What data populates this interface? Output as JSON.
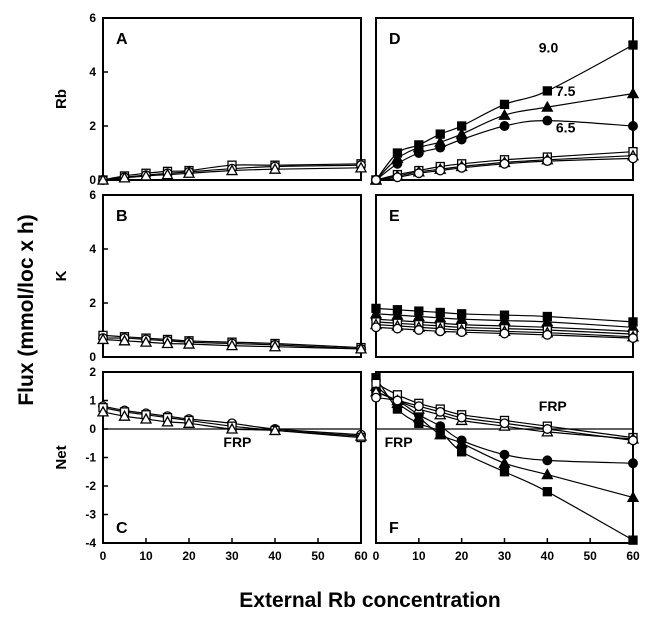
{
  "figure": {
    "xlabel": "External Rb concentration",
    "ylabel": "Flux (mmol/loc x h)",
    "row_labels": [
      "Rb",
      "K",
      "Net"
    ]
  },
  "chart_data": [
    {
      "panel": "A",
      "type": "line",
      "row_label": "Rb",
      "xlim": [
        0,
        60
      ],
      "ylim": [
        0,
        6
      ],
      "xticks": [],
      "yticks": [
        0,
        2,
        4,
        6
      ],
      "annotations": [],
      "series": [
        {
          "marker": "open-square",
          "x": [
            0,
            5,
            10,
            15,
            20,
            30,
            40,
            60
          ],
          "y": [
            0,
            0.15,
            0.25,
            0.32,
            0.35,
            0.55,
            0.55,
            0.6
          ]
        },
        {
          "marker": "open-circle",
          "x": [
            0,
            5,
            10,
            15,
            20,
            30,
            40,
            60
          ],
          "y": [
            0,
            0.1,
            0.18,
            0.25,
            0.3,
            0.42,
            0.5,
            0.55
          ]
        },
        {
          "marker": "open-triangle",
          "x": [
            0,
            5,
            10,
            15,
            20,
            30,
            40,
            60
          ],
          "y": [
            0,
            0.08,
            0.15,
            0.2,
            0.25,
            0.35,
            0.4,
            0.45
          ]
        }
      ]
    },
    {
      "panel": "D",
      "type": "line",
      "row_label": "",
      "xlim": [
        0,
        60
      ],
      "ylim": [
        0,
        6
      ],
      "xticks": [],
      "yticks": [],
      "annotations": [
        {
          "text": "9.0",
          "x": 38,
          "y": 4.9
        },
        {
          "text": "7.5",
          "x": 42,
          "y": 3.3
        },
        {
          "text": "6.5",
          "x": 42,
          "y": 1.95
        }
      ],
      "series": [
        {
          "marker": "filled-square",
          "x": [
            0,
            5,
            10,
            15,
            20,
            30,
            40,
            60
          ],
          "y": [
            0,
            1,
            1.3,
            1.7,
            2,
            2.8,
            3.3,
            5
          ]
        },
        {
          "marker": "filled-triangle",
          "x": [
            0,
            5,
            10,
            15,
            20,
            30,
            40,
            60
          ],
          "y": [
            0,
            0.8,
            1.2,
            1.4,
            1.7,
            2.4,
            2.7,
            3.2
          ]
        },
        {
          "marker": "filled-circle",
          "x": [
            0,
            5,
            10,
            15,
            20,
            30,
            40,
            60
          ],
          "y": [
            0,
            0.6,
            1,
            1.2,
            1.5,
            2,
            2.2,
            2
          ]
        },
        {
          "marker": "open-square",
          "x": [
            0,
            5,
            10,
            15,
            20,
            30,
            40,
            60
          ],
          "y": [
            0,
            0.2,
            0.35,
            0.5,
            0.6,
            0.75,
            0.85,
            1.05
          ]
        },
        {
          "marker": "open-triangle",
          "x": [
            0,
            5,
            10,
            15,
            20,
            30,
            40,
            60
          ],
          "y": [
            0,
            0.15,
            0.3,
            0.4,
            0.5,
            0.65,
            0.75,
            0.9
          ]
        },
        {
          "marker": "open-circle",
          "x": [
            0,
            5,
            10,
            15,
            20,
            30,
            40,
            60
          ],
          "y": [
            0,
            0.1,
            0.25,
            0.35,
            0.45,
            0.6,
            0.7,
            0.8
          ]
        }
      ]
    },
    {
      "panel": "B",
      "type": "line",
      "row_label": "K",
      "xlim": [
        0,
        60
      ],
      "ylim": [
        0,
        6
      ],
      "xticks": [],
      "yticks": [
        0,
        2,
        4,
        6
      ],
      "annotations": [],
      "series": [
        {
          "marker": "open-square",
          "x": [
            0,
            5,
            10,
            15,
            20,
            30,
            40,
            60
          ],
          "y": [
            0.8,
            0.75,
            0.7,
            0.65,
            0.6,
            0.55,
            0.5,
            0.35
          ]
        },
        {
          "marker": "open-circle",
          "x": [
            0,
            5,
            10,
            15,
            20,
            30,
            40,
            60
          ],
          "y": [
            0.7,
            0.7,
            0.65,
            0.6,
            0.55,
            0.5,
            0.45,
            0.3
          ]
        },
        {
          "marker": "open-triangle",
          "x": [
            0,
            5,
            10,
            15,
            20,
            30,
            40,
            60
          ],
          "y": [
            0.65,
            0.6,
            0.55,
            0.5,
            0.48,
            0.42,
            0.38,
            0.3
          ]
        }
      ]
    },
    {
      "panel": "E",
      "type": "line",
      "row_label": "",
      "xlim": [
        0,
        60
      ],
      "ylim": [
        0,
        6
      ],
      "xticks": [],
      "yticks": [],
      "annotations": [],
      "series": [
        {
          "marker": "filled-square",
          "x": [
            0,
            5,
            10,
            15,
            20,
            30,
            40,
            60
          ],
          "y": [
            1.8,
            1.75,
            1.7,
            1.65,
            1.6,
            1.55,
            1.5,
            1.3
          ]
        },
        {
          "marker": "filled-triangle",
          "x": [
            0,
            5,
            10,
            15,
            20,
            30,
            40,
            60
          ],
          "y": [
            1.6,
            1.55,
            1.5,
            1.45,
            1.4,
            1.35,
            1.3,
            1.1
          ]
        },
        {
          "marker": "filled-circle",
          "x": [
            0,
            5,
            10,
            15,
            20,
            30,
            40,
            60
          ],
          "y": [
            1.4,
            1.35,
            1.3,
            1.25,
            1.2,
            1.15,
            1.1,
            0.95
          ]
        },
        {
          "marker": "open-square",
          "x": [
            0,
            5,
            10,
            15,
            20,
            30,
            40,
            60
          ],
          "y": [
            1.3,
            1.25,
            1.2,
            1.15,
            1.1,
            1.05,
            1,
            0.85
          ]
        },
        {
          "marker": "open-triangle",
          "x": [
            0,
            5,
            10,
            15,
            20,
            30,
            40,
            60
          ],
          "y": [
            1.2,
            1.15,
            1.1,
            1.05,
            1,
            0.95,
            0.9,
            0.75
          ]
        },
        {
          "marker": "open-circle",
          "x": [
            0,
            5,
            10,
            15,
            20,
            30,
            40,
            60
          ],
          "y": [
            1.1,
            1.05,
            1,
            0.95,
            0.92,
            0.87,
            0.82,
            0.7
          ]
        }
      ]
    },
    {
      "panel": "C",
      "type": "line",
      "row_label": "Net",
      "xlim": [
        0,
        60
      ],
      "ylim": [
        -4,
        2
      ],
      "xticks": [
        0,
        10,
        20,
        30,
        40,
        50,
        60
      ],
      "yticks": [
        -4,
        -3,
        -2,
        -1,
        0,
        1,
        2
      ],
      "annotations": [
        {
          "text": "FRP",
          "x": 28,
          "y": -0.45
        }
      ],
      "series": [
        {
          "marker": "open-circle",
          "x": [
            0,
            5,
            10,
            15,
            20,
            30,
            40,
            60
          ],
          "y": [
            0.8,
            0.65,
            0.55,
            0.45,
            0.35,
            0.2,
            0,
            -0.2
          ]
        },
        {
          "marker": "open-square",
          "x": [
            0,
            5,
            10,
            15,
            20,
            30,
            40,
            60
          ],
          "y": [
            0.75,
            0.6,
            0.5,
            0.4,
            0.3,
            0.1,
            -0.05,
            -0.3
          ]
        },
        {
          "marker": "open-triangle",
          "x": [
            0,
            5,
            10,
            15,
            20,
            30,
            40,
            60
          ],
          "y": [
            0.6,
            0.45,
            0.35,
            0.25,
            0.2,
            0,
            -0.05,
            -0.25
          ]
        }
      ]
    },
    {
      "panel": "F",
      "type": "line",
      "row_label": "",
      "xlim": [
        0,
        60
      ],
      "ylim": [
        -4,
        2
      ],
      "xticks": [
        0,
        10,
        20,
        30,
        40,
        50,
        60
      ],
      "yticks": [],
      "annotations": [
        {
          "text": "FRP",
          "x": 38,
          "y": 0.8
        },
        {
          "text": "FRP",
          "x": 2,
          "y": -0.45
        }
      ],
      "series": [
        {
          "marker": "filled-square",
          "x": [
            0,
            5,
            10,
            15,
            20,
            30,
            40,
            60
          ],
          "y": [
            1.8,
            0.7,
            0.2,
            -0.1,
            -0.8,
            -1.5,
            -2.2,
            -3.9
          ]
        },
        {
          "marker": "filled-triangle",
          "x": [
            0,
            5,
            10,
            15,
            20,
            30,
            40,
            60
          ],
          "y": [
            1.5,
            0.9,
            0.4,
            -0.2,
            -0.5,
            -1.2,
            -1.6,
            -2.4
          ]
        },
        {
          "marker": "filled-circle",
          "x": [
            0,
            5,
            10,
            15,
            20,
            30,
            40,
            60
          ],
          "y": [
            1.3,
            1,
            0.5,
            0.1,
            -0.4,
            -0.9,
            -1.1,
            -1.2
          ]
        },
        {
          "marker": "open-square",
          "x": [
            0,
            5,
            10,
            15,
            20,
            30,
            40,
            60
          ],
          "y": [
            1.6,
            1.2,
            0.9,
            0.7,
            0.5,
            0.3,
            0.1,
            -0.3
          ]
        },
        {
          "marker": "open-triangle",
          "x": [
            0,
            5,
            10,
            15,
            20,
            30,
            40,
            60
          ],
          "y": [
            1.3,
            1,
            0.7,
            0.5,
            0.3,
            0.1,
            -0.1,
            -0.35
          ]
        },
        {
          "marker": "open-circle",
          "x": [
            0,
            5,
            10,
            15,
            20,
            30,
            40,
            60
          ],
          "y": [
            1.1,
            1,
            0.8,
            0.6,
            0.4,
            0.2,
            0,
            -0.4
          ]
        }
      ]
    }
  ]
}
